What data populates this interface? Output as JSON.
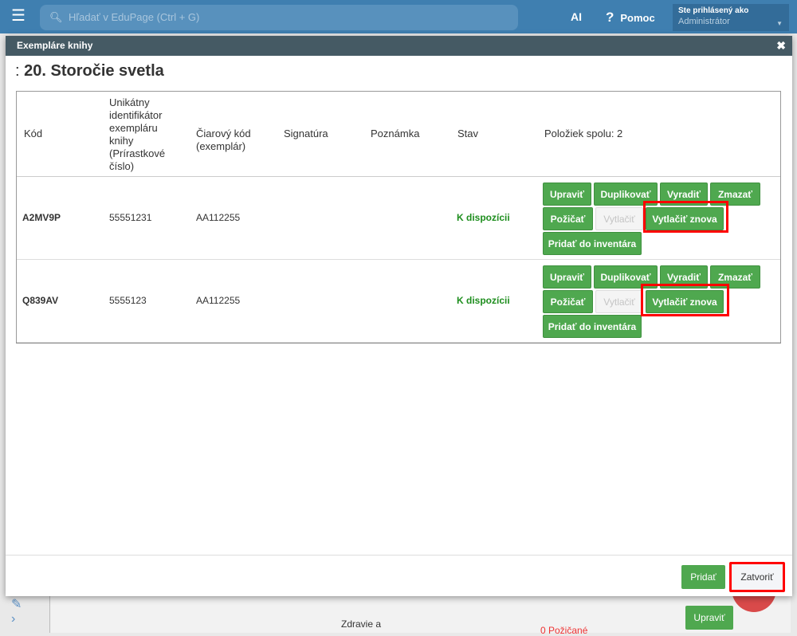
{
  "topbar": {
    "search_placeholder": "Hľadať v EduPage (Ctrl + G)",
    "ai": "AI",
    "help": "Pomoc",
    "user_label": "Ste prihlásený ako",
    "user_role": "Administrátor"
  },
  "background": {
    "text1": "Zdravie a",
    "text2": "0 Požičané",
    "button": "Upraviť"
  },
  "modal": {
    "header": "Exempláre knihy",
    "title_prefix": ":",
    "title": "20. Storočie svetla",
    "columns": [
      "Kód",
      "Unikátny identifikátor exempláru knihy (Prírastkové číslo)",
      "Čiarový kód (exemplár)",
      "Signatúra",
      "Poznámka",
      "Stav",
      "Položiek spolu: 2"
    ],
    "rows": [
      {
        "code": "A2MV9P",
        "id": "55551231",
        "barcode": "AA112255",
        "signature": "",
        "note": "",
        "status": "K dispozícii"
      },
      {
        "code": "Q839AV",
        "id": "5555123",
        "barcode": "AA112255",
        "signature": "",
        "note": "",
        "status": "K dispozícii"
      }
    ],
    "row_buttons": {
      "edit": "Upraviť",
      "duplicate": "Duplikovať",
      "discard": "Vyradiť",
      "delete": "Zmazať",
      "lend": "Požičať",
      "print": "Vytlačiť",
      "reprint": "Vytlačiť znova",
      "add_inventory": "Pridať do inventára"
    },
    "footer": {
      "add": "Pridať",
      "close": "Zatvoriť"
    }
  },
  "colors": {
    "topbar": "#3f7fb0",
    "modal_header": "#455a64",
    "button_green": "#4fa84f",
    "status_green": "#1e8e1e",
    "highlight": "#ff0000"
  }
}
